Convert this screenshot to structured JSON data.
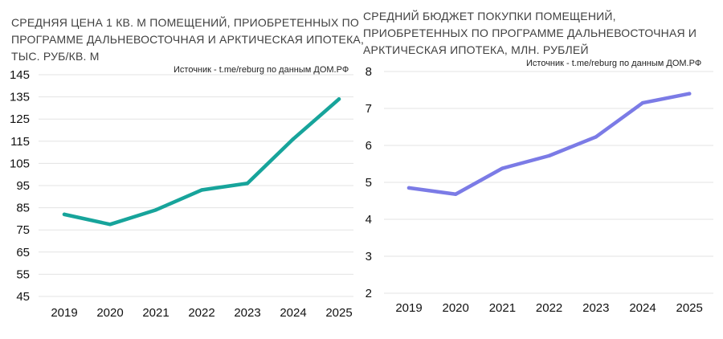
{
  "chart_data": [
    {
      "type": "line",
      "title_lines": [
        "СРЕДНЯЯ ЦЕНА 1 КВ. М ПОМЕЩЕНИЙ, ПРИОБРЕТЕННЫХ ПО",
        "ПРОГРАММЕ ДАЛЬНЕВОСТОЧНАЯ И АРКТИЧЕСКАЯ ИПОТЕКА,",
        "ТЫС. РУБ/КВ. М"
      ],
      "source": "Источник - t.me/reburg по данным ДОМ.РФ",
      "categories": [
        "2019",
        "2020",
        "2021",
        "2022",
        "2023",
        "2024",
        "2025"
      ],
      "values": [
        82,
        77.5,
        84,
        93,
        96,
        116,
        134
      ],
      "ylim": [
        45,
        145
      ],
      "yticks": [
        "145",
        "135",
        "125",
        "115",
        "105",
        "95",
        "85",
        "75",
        "65",
        "55",
        "45"
      ],
      "grid": true,
      "color": "#17A49B"
    },
    {
      "type": "line",
      "title_lines": [
        "СРЕДНИЙ БЮДЖЕТ ПОКУПКИ ПОМЕЩЕНИЙ,",
        "ПРИОБРЕТЕННЫХ ПО ПРОГРАММЕ ДАЛЬНЕВОСТОЧНАЯ И",
        "АРКТИЧЕСКАЯ ИПОТЕКА, МЛН. РУБЛЕЙ"
      ],
      "source": "Источник - t.me/reburg по данным ДОМ.РФ",
      "categories": [
        "2019",
        "2020",
        "2021",
        "2022",
        "2023",
        "2024",
        "2025"
      ],
      "values": [
        4.85,
        4.68,
        5.38,
        5.72,
        6.23,
        7.15,
        7.4
      ],
      "ylim": [
        2,
        8
      ],
      "yticks": [
        "8",
        "7",
        "6",
        "5",
        "4",
        "3",
        "2"
      ],
      "grid": true,
      "color": "#7B7BE6"
    }
  ]
}
